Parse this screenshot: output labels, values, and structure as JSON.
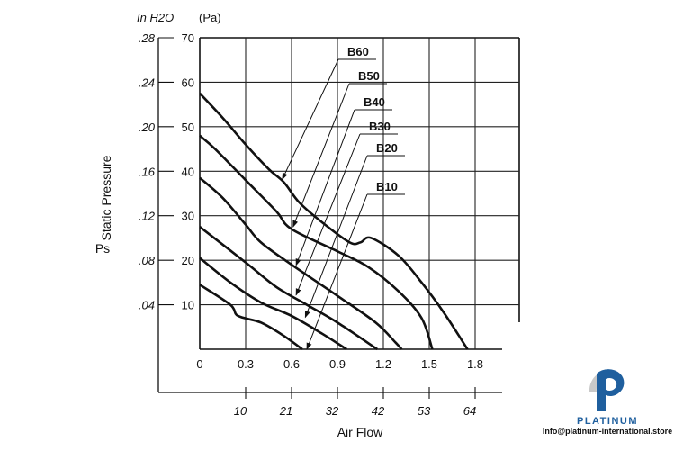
{
  "chart_data": {
    "type": "line",
    "title": "",
    "xlabel": "Air Flow",
    "ylabel": "Static Pressure",
    "ylabel_symbol": "Ps",
    "y_unit_primary": "(Pa)",
    "y_unit_secondary": "In H2O",
    "xlim": [
      0,
      2.09
    ],
    "ylim": [
      0,
      70
    ],
    "grid": true,
    "x_ticks": [
      "0",
      "0.3",
      "0.6",
      "0.9",
      "1.2",
      "1.5",
      "1.8"
    ],
    "x_tick_values": [
      0,
      0.3,
      0.6,
      0.9,
      1.2,
      1.5,
      1.8
    ],
    "y_ticks": [
      "10",
      "20",
      "30",
      "40",
      "50",
      "60",
      "70"
    ],
    "y_tick_values": [
      10,
      20,
      30,
      40,
      50,
      60,
      70
    ],
    "y2_ticks": [
      ".04",
      ".08",
      ".12",
      ".16",
      ".20",
      ".24",
      ".28"
    ],
    "x2_ticks": [
      "10",
      "21",
      "32",
      "42",
      "53",
      "64"
    ],
    "x2_tick_positions": [
      0.3,
      0.6,
      0.9,
      1.2,
      1.5,
      1.8
    ],
    "series": [
      {
        "name": "B60",
        "arrow_to": [
          0.54,
          38.2
        ],
        "points": [
          [
            0,
            57.5
          ],
          [
            0.15,
            52
          ],
          [
            0.3,
            46
          ],
          [
            0.45,
            40.5
          ],
          [
            0.55,
            37.5
          ],
          [
            0.65,
            33
          ],
          [
            0.8,
            28.5
          ],
          [
            0.98,
            24
          ],
          [
            1.05,
            24
          ],
          [
            1.12,
            25
          ],
          [
            1.3,
            21
          ],
          [
            1.45,
            15
          ],
          [
            1.6,
            8
          ],
          [
            1.75,
            0
          ]
        ]
      },
      {
        "name": "B50",
        "arrow_to": [
          0.61,
          27.5
        ],
        "points": [
          [
            0,
            48
          ],
          [
            0.1,
            45
          ],
          [
            0.3,
            38
          ],
          [
            0.5,
            31
          ],
          [
            0.6,
            27
          ],
          [
            0.9,
            22
          ],
          [
            1.1,
            18.5
          ],
          [
            1.3,
            13
          ],
          [
            1.45,
            7
          ],
          [
            1.52,
            0
          ]
        ]
      },
      {
        "name": "B40",
        "arrow_to": [
          0.63,
          18.9
        ],
        "points": [
          [
            0,
            38.5
          ],
          [
            0.15,
            34
          ],
          [
            0.3,
            28
          ],
          [
            0.4,
            24
          ],
          [
            0.6,
            19
          ],
          [
            0.9,
            12
          ],
          [
            1.15,
            6
          ],
          [
            1.28,
            1.5
          ],
          [
            1.32,
            0
          ]
        ]
      },
      {
        "name": "B30",
        "arrow_to": [
          0.63,
          12.2
        ],
        "points": [
          [
            0,
            27.5
          ],
          [
            0.3,
            19.5
          ],
          [
            0.5,
            14
          ],
          [
            0.7,
            10
          ],
          [
            0.9,
            6
          ],
          [
            1.16,
            0
          ]
        ]
      },
      {
        "name": "B20",
        "arrow_to": [
          0.69,
          7.2
        ],
        "points": [
          [
            0,
            20.5
          ],
          [
            0.2,
            15
          ],
          [
            0.4,
            10.5
          ],
          [
            0.6,
            7.5
          ],
          [
            0.8,
            3.5
          ],
          [
            0.96,
            0
          ]
        ]
      },
      {
        "name": "B10",
        "arrow_to": [
          0.7,
          0
        ],
        "points": [
          [
            0,
            14.5
          ],
          [
            0.2,
            10
          ],
          [
            0.25,
            7.5
          ],
          [
            0.4,
            6
          ],
          [
            0.55,
            3
          ],
          [
            0.67,
            0
          ]
        ]
      }
    ]
  },
  "logo": {
    "brand": "PLATINUM",
    "email": "Info@platinum-international.store"
  }
}
